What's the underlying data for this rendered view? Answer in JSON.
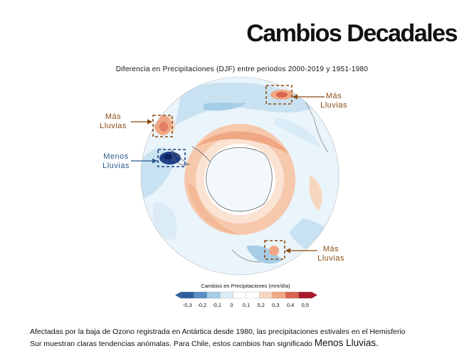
{
  "slide": {
    "title": "Cambios Decadales",
    "subtitle": "Diferencia en Precipitaciones (DJF) entre periodos 2000-2019 y 1951-1980"
  },
  "annotations": [
    {
      "label": "Más\nLluvias",
      "color": "#8a4b12"
    },
    {
      "label": "Más\nLluvias",
      "color": "#8a4b12"
    },
    {
      "label": "Menos\nLluvias",
      "color": "#2b5a8c"
    },
    {
      "label": "Más\nLluvias",
      "color": "#8a4b12"
    }
  ],
  "colorbar": {
    "title": "Cambios en Precipitaciones (mm/día)",
    "ticks": [
      "-0,3",
      "-0,2",
      "-0,1",
      "0",
      "0,1",
      "0,2",
      "0,3",
      "0,4",
      "0,5"
    ],
    "colors": [
      "#2c5d9e",
      "#5b8ec5",
      "#a6cde6",
      "#dcecf6",
      "#ffffff",
      "#ffffff",
      "#f7d6c0",
      "#f0a783",
      "#d9644f",
      "#a9192c"
    ]
  },
  "caption": {
    "line1": "Afectadas por la baja de Ozono registrada en Antártica desde 1980, las precipitaciones estivales en el Hemisferio",
    "line2": "Sur muestran claras tendencias anómalas. Para Chile, estos cambios han significado ",
    "emphasis": "Menos Lluvias."
  }
}
